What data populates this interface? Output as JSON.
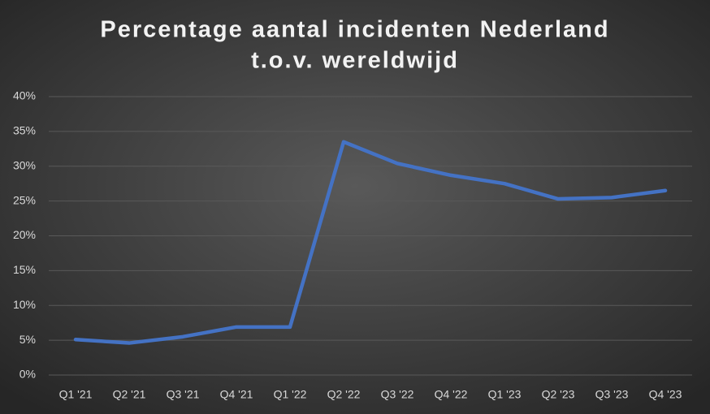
{
  "chart_data": {
    "type": "line",
    "title": [
      "Percentage aantal incidenten Nederland",
      "t.o.v. wereldwijd"
    ],
    "categories": [
      "Q1 '21",
      "Q2 '21",
      "Q3 '21",
      "Q4 '21",
      "Q1 '22",
      "Q2 '22",
      "Q3 '22",
      "Q4 '22",
      "Q1 '23",
      "Q2 '23",
      "Q3 '23",
      "Q4 '23"
    ],
    "values": [
      5.1,
      4.6,
      5.5,
      6.9,
      6.9,
      33.5,
      30.4,
      28.7,
      27.5,
      25.3,
      25.5,
      26.5
    ],
    "color": "#4472c4",
    "ylim": [
      0,
      40
    ],
    "yticks": [
      {
        "value": 0,
        "label": "0%"
      },
      {
        "value": 5,
        "label": "5%"
      },
      {
        "value": 10,
        "label": "10%"
      },
      {
        "value": 15,
        "label": "15%"
      },
      {
        "value": 20,
        "label": "20%"
      },
      {
        "value": 25,
        "label": "25%"
      },
      {
        "value": 30,
        "label": "30%"
      },
      {
        "value": 35,
        "label": "35%"
      },
      {
        "value": 40,
        "label": "40%"
      }
    ],
    "grid": true
  }
}
